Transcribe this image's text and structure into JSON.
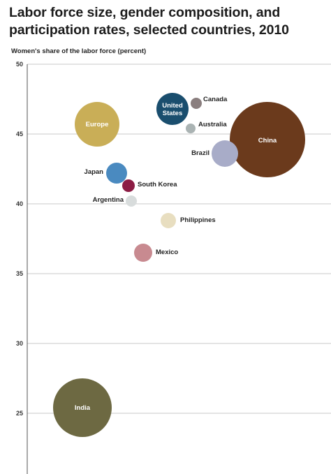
{
  "title": "Labor force size, gender composition, and participation rates, selected countries, 2010",
  "ylabel": "Women's share of the labor force (percent)",
  "chart_data": {
    "type": "scatter",
    "title": "Labor force size, gender composition, and participation rates, selected countries, 2010",
    "ylabel": "Women's share of the labor force (percent)",
    "xlabel": "",
    "ylim": [
      22,
      50
    ],
    "yticks": [
      25,
      30,
      35,
      40,
      45,
      50
    ],
    "grid": true,
    "points": [
      {
        "label": "Europe",
        "y": 45.7,
        "size": 32,
        "color": "#c9ae57",
        "label_inside": true
      },
      {
        "label": "United States",
        "y": 46.8,
        "size": 23,
        "color": "#1a4e6e",
        "label_inside": true
      },
      {
        "label": "Canada",
        "y": 47.2,
        "size": 8,
        "color": "#8a7e7e",
        "label_inside": false
      },
      {
        "label": "Australia",
        "y": 45.4,
        "size": 7,
        "color": "#aab3b3",
        "label_inside": false
      },
      {
        "label": "China",
        "y": 44.6,
        "size": 54,
        "color": "#6b3a1c",
        "label_inside": true
      },
      {
        "label": "Brazil",
        "y": 43.6,
        "size": 19,
        "color": "#a8acc8",
        "label_inside": false
      },
      {
        "label": "Japan",
        "y": 42.2,
        "size": 15,
        "color": "#4a8ac0",
        "label_inside": false
      },
      {
        "label": "South Korea",
        "y": 41.3,
        "size": 9,
        "color": "#8c1c44",
        "label_inside": false
      },
      {
        "label": "Argentina",
        "y": 40.2,
        "size": 8,
        "color": "#d8dcdc",
        "label_inside": false
      },
      {
        "label": "Philippines",
        "y": 38.8,
        "size": 11,
        "color": "#e8dec0",
        "label_inside": false
      },
      {
        "label": "Mexico",
        "y": 36.5,
        "size": 13,
        "color": "#c88a90",
        "label_inside": false
      },
      {
        "label": "India",
        "y": 25.4,
        "size": 42,
        "color": "#6d6942",
        "label_inside": true
      }
    ]
  }
}
